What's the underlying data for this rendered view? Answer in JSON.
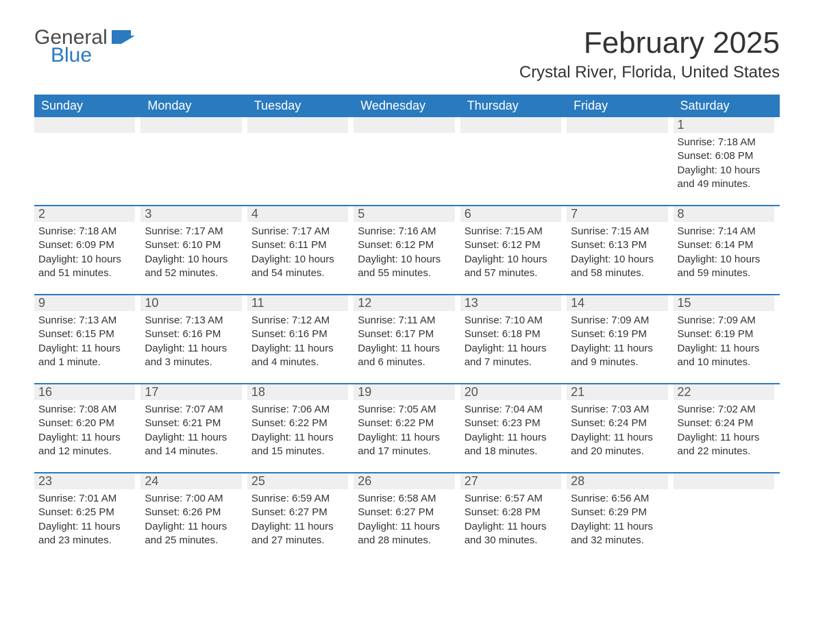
{
  "logo": {
    "word1": "General",
    "word2": "Blue"
  },
  "title": "February 2025",
  "location": "Crystal River, Florida, United States",
  "colors": {
    "header_bg": "#2a7abf",
    "header_text": "#ffffff",
    "daynum_bg": "#efefef",
    "border": "#2a7abf",
    "body_text": "#333333",
    "logo_gray": "#4a4a4a",
    "logo_blue": "#2a7abf"
  },
  "day_headers": [
    "Sunday",
    "Monday",
    "Tuesday",
    "Wednesday",
    "Thursday",
    "Friday",
    "Saturday"
  ],
  "weeks": [
    [
      {
        "n": "",
        "sr": "",
        "ss": "",
        "dl": ""
      },
      {
        "n": "",
        "sr": "",
        "ss": "",
        "dl": ""
      },
      {
        "n": "",
        "sr": "",
        "ss": "",
        "dl": ""
      },
      {
        "n": "",
        "sr": "",
        "ss": "",
        "dl": ""
      },
      {
        "n": "",
        "sr": "",
        "ss": "",
        "dl": ""
      },
      {
        "n": "",
        "sr": "",
        "ss": "",
        "dl": ""
      },
      {
        "n": "1",
        "sr": "Sunrise: 7:18 AM",
        "ss": "Sunset: 6:08 PM",
        "dl": "Daylight: 10 hours and 49 minutes."
      }
    ],
    [
      {
        "n": "2",
        "sr": "Sunrise: 7:18 AM",
        "ss": "Sunset: 6:09 PM",
        "dl": "Daylight: 10 hours and 51 minutes."
      },
      {
        "n": "3",
        "sr": "Sunrise: 7:17 AM",
        "ss": "Sunset: 6:10 PM",
        "dl": "Daylight: 10 hours and 52 minutes."
      },
      {
        "n": "4",
        "sr": "Sunrise: 7:17 AM",
        "ss": "Sunset: 6:11 PM",
        "dl": "Daylight: 10 hours and 54 minutes."
      },
      {
        "n": "5",
        "sr": "Sunrise: 7:16 AM",
        "ss": "Sunset: 6:12 PM",
        "dl": "Daylight: 10 hours and 55 minutes."
      },
      {
        "n": "6",
        "sr": "Sunrise: 7:15 AM",
        "ss": "Sunset: 6:12 PM",
        "dl": "Daylight: 10 hours and 57 minutes."
      },
      {
        "n": "7",
        "sr": "Sunrise: 7:15 AM",
        "ss": "Sunset: 6:13 PM",
        "dl": "Daylight: 10 hours and 58 minutes."
      },
      {
        "n": "8",
        "sr": "Sunrise: 7:14 AM",
        "ss": "Sunset: 6:14 PM",
        "dl": "Daylight: 10 hours and 59 minutes."
      }
    ],
    [
      {
        "n": "9",
        "sr": "Sunrise: 7:13 AM",
        "ss": "Sunset: 6:15 PM",
        "dl": "Daylight: 11 hours and 1 minute."
      },
      {
        "n": "10",
        "sr": "Sunrise: 7:13 AM",
        "ss": "Sunset: 6:16 PM",
        "dl": "Daylight: 11 hours and 3 minutes."
      },
      {
        "n": "11",
        "sr": "Sunrise: 7:12 AM",
        "ss": "Sunset: 6:16 PM",
        "dl": "Daylight: 11 hours and 4 minutes."
      },
      {
        "n": "12",
        "sr": "Sunrise: 7:11 AM",
        "ss": "Sunset: 6:17 PM",
        "dl": "Daylight: 11 hours and 6 minutes."
      },
      {
        "n": "13",
        "sr": "Sunrise: 7:10 AM",
        "ss": "Sunset: 6:18 PM",
        "dl": "Daylight: 11 hours and 7 minutes."
      },
      {
        "n": "14",
        "sr": "Sunrise: 7:09 AM",
        "ss": "Sunset: 6:19 PM",
        "dl": "Daylight: 11 hours and 9 minutes."
      },
      {
        "n": "15",
        "sr": "Sunrise: 7:09 AM",
        "ss": "Sunset: 6:19 PM",
        "dl": "Daylight: 11 hours and 10 minutes."
      }
    ],
    [
      {
        "n": "16",
        "sr": "Sunrise: 7:08 AM",
        "ss": "Sunset: 6:20 PM",
        "dl": "Daylight: 11 hours and 12 minutes."
      },
      {
        "n": "17",
        "sr": "Sunrise: 7:07 AM",
        "ss": "Sunset: 6:21 PM",
        "dl": "Daylight: 11 hours and 14 minutes."
      },
      {
        "n": "18",
        "sr": "Sunrise: 7:06 AM",
        "ss": "Sunset: 6:22 PM",
        "dl": "Daylight: 11 hours and 15 minutes."
      },
      {
        "n": "19",
        "sr": "Sunrise: 7:05 AM",
        "ss": "Sunset: 6:22 PM",
        "dl": "Daylight: 11 hours and 17 minutes."
      },
      {
        "n": "20",
        "sr": "Sunrise: 7:04 AM",
        "ss": "Sunset: 6:23 PM",
        "dl": "Daylight: 11 hours and 18 minutes."
      },
      {
        "n": "21",
        "sr": "Sunrise: 7:03 AM",
        "ss": "Sunset: 6:24 PM",
        "dl": "Daylight: 11 hours and 20 minutes."
      },
      {
        "n": "22",
        "sr": "Sunrise: 7:02 AM",
        "ss": "Sunset: 6:24 PM",
        "dl": "Daylight: 11 hours and 22 minutes."
      }
    ],
    [
      {
        "n": "23",
        "sr": "Sunrise: 7:01 AM",
        "ss": "Sunset: 6:25 PM",
        "dl": "Daylight: 11 hours and 23 minutes."
      },
      {
        "n": "24",
        "sr": "Sunrise: 7:00 AM",
        "ss": "Sunset: 6:26 PM",
        "dl": "Daylight: 11 hours and 25 minutes."
      },
      {
        "n": "25",
        "sr": "Sunrise: 6:59 AM",
        "ss": "Sunset: 6:27 PM",
        "dl": "Daylight: 11 hours and 27 minutes."
      },
      {
        "n": "26",
        "sr": "Sunrise: 6:58 AM",
        "ss": "Sunset: 6:27 PM",
        "dl": "Daylight: 11 hours and 28 minutes."
      },
      {
        "n": "27",
        "sr": "Sunrise: 6:57 AM",
        "ss": "Sunset: 6:28 PM",
        "dl": "Daylight: 11 hours and 30 minutes."
      },
      {
        "n": "28",
        "sr": "Sunrise: 6:56 AM",
        "ss": "Sunset: 6:29 PM",
        "dl": "Daylight: 11 hours and 32 minutes."
      },
      {
        "n": "",
        "sr": "",
        "ss": "",
        "dl": ""
      }
    ]
  ]
}
